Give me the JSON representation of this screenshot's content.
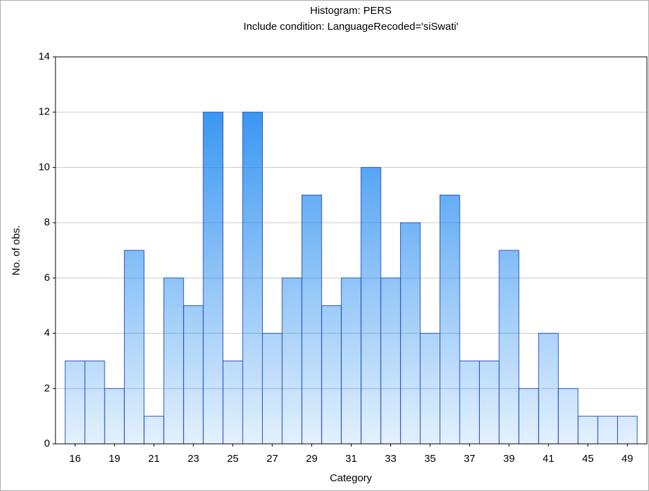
{
  "chart_data": {
    "type": "bar",
    "title": "Histogram: PERS",
    "subtitle": "Include condition: LanguageRecoded='siSwati'",
    "x_label": "Category",
    "y_label": "No. of obs.",
    "categories": [
      "16",
      null,
      "19",
      null,
      "21",
      null,
      "23",
      null,
      "25",
      null,
      "27",
      null,
      "29",
      null,
      "31",
      null,
      "33",
      null,
      "35",
      null,
      "37",
      null,
      "39",
      null,
      "41",
      null,
      "45",
      null,
      "49"
    ],
    "values": [
      3,
      3,
      2,
      7,
      1,
      6,
      5,
      12,
      3,
      12,
      4,
      6,
      9,
      5,
      6,
      10,
      6,
      8,
      4,
      9,
      3,
      3,
      7,
      2,
      4,
      2,
      1,
      1,
      1
    ],
    "color": "#1e88f0",
    "ylim": [
      0,
      14
    ],
    "yticks": [
      0,
      2,
      4,
      6,
      8,
      10,
      12,
      14
    ],
    "grid": true
  }
}
